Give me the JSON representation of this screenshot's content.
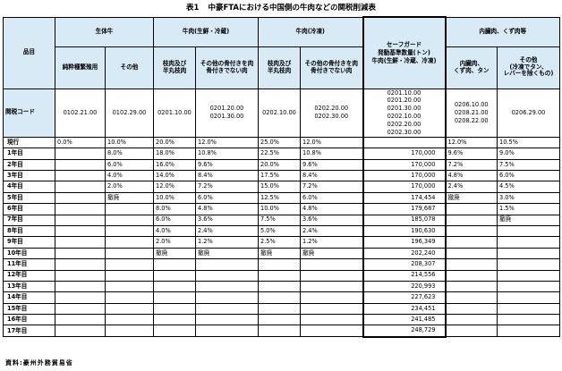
{
  "title": {
    "number": "表1",
    "text": "中豪FTAにおける中国側の牛肉などの関税削減表"
  },
  "headers": {
    "item": "品目",
    "whole_cattle": "生体牛",
    "beef_fresh": "牛肉(生鮮・冷蔵)",
    "beef_frozen": "牛肉(冷凍)",
    "safeguard": [
      "セーフガード",
      "発動基準数量(トン)",
      "牛肉(生鮮・冷蔵、冷凍)"
    ],
    "offal": "内臓肉、くず肉等",
    "sub": {
      "breeding": "純粋種繁殖用",
      "other_cattle": "その他",
      "carcass_fresh": [
        "枝肉及び",
        "半丸枝肉"
      ],
      "other_fresh": [
        "その他の骨付きを肉",
        "骨付きでない肉"
      ],
      "carcass_frozen": [
        "枝肉及び",
        "半丸枝肉"
      ],
      "other_frozen": [
        "その他の骨付きを肉",
        "骨付きでない肉"
      ],
      "offal_a": [
        "内臓肉、",
        "くず肉、タン"
      ],
      "offal_b": [
        "その他",
        "(冷凍でタン、",
        "レバーを除くもの)"
      ]
    }
  },
  "tariff_codes": {
    "label": "関税コード",
    "cells": [
      [
        "0102.21.00"
      ],
      [
        "0102.29.00"
      ],
      [
        "0201.10.00"
      ],
      [
        "0201.20.00",
        "0201.30.00"
      ],
      [
        "0202.10.00"
      ],
      [
        "0202.20.00",
        "0202.30.00"
      ],
      [
        "0201.10.00",
        "0201.20.00",
        "0201.30.00",
        "0202.10.00",
        "0202.20.00",
        "0202.30.00"
      ],
      [
        "0206.10.00",
        "0208.21.00",
        "0208.22.00"
      ],
      [
        "0206.29.00"
      ]
    ]
  },
  "rows": [
    {
      "label": "現行",
      "cells": [
        "0.0%",
        "10.0%",
        "20.0%",
        "12.0%",
        "25.0%",
        "12.0%",
        "",
        "12.0%",
        "10.5%"
      ]
    },
    {
      "label": "1年目",
      "cells": [
        "",
        "8.0%",
        "18.0%",
        "10.8%",
        "22.5%",
        "10.8%",
        "170,000",
        "9.6%",
        "9.0%"
      ]
    },
    {
      "label": "2年目",
      "cells": [
        "",
        "6.0%",
        "16.0%",
        "9.6%",
        "20.0%",
        "9.6%",
        "170,000",
        "7.2%",
        "7.5%"
      ]
    },
    {
      "label": "3年目",
      "cells": [
        "",
        "4.0%",
        "14.0%",
        "8.4%",
        "17.5%",
        "8.4%",
        "170,000",
        "4.8%",
        "6.0%"
      ]
    },
    {
      "label": "4年目",
      "cells": [
        "",
        "2.0%",
        "12.0%",
        "7.2%",
        "15.0%",
        "7.2%",
        "170,000",
        "2.4%",
        "4.5%"
      ]
    },
    {
      "label": "5年目",
      "cells": [
        "",
        "撤廃",
        "10.0%",
        "6.0%",
        "12.5%",
        "6.0%",
        "174,454",
        "撤廃",
        "3.0%"
      ]
    },
    {
      "label": "6年目",
      "cells": [
        "",
        "",
        "8.0%",
        "4.8%",
        "10.0%",
        "4.8%",
        "179,687",
        "",
        "1.5%"
      ]
    },
    {
      "label": "7年目",
      "cells": [
        "",
        "",
        "6.0%",
        "3.6%",
        "7.5%",
        "3.6%",
        "185,078",
        "",
        "撤廃"
      ]
    },
    {
      "label": "8年目",
      "cells": [
        "",
        "",
        "4.0%",
        "2.4%",
        "5.0%",
        "2.4%",
        "190,630",
        "",
        ""
      ]
    },
    {
      "label": "9年目",
      "cells": [
        "",
        "",
        "2.0%",
        "1.2%",
        "2.5%",
        "1.2%",
        "196,349",
        "",
        ""
      ]
    },
    {
      "label": "10年目",
      "cells": [
        "",
        "",
        "撤廃",
        "撤廃",
        "撤廃",
        "撤廃",
        "202,240",
        "",
        ""
      ]
    },
    {
      "label": "11年目",
      "cells": [
        "",
        "",
        "",
        "",
        "",
        "",
        "208,307",
        "",
        ""
      ]
    },
    {
      "label": "12年目",
      "cells": [
        "",
        "",
        "",
        "",
        "",
        "",
        "214,556",
        "",
        ""
      ]
    },
    {
      "label": "13年目",
      "cells": [
        "",
        "",
        "",
        "",
        "",
        "",
        "220,993",
        "",
        ""
      ]
    },
    {
      "label": "14年目",
      "cells": [
        "",
        "",
        "",
        "",
        "",
        "",
        "227,623",
        "",
        ""
      ]
    },
    {
      "label": "15年目",
      "cells": [
        "",
        "",
        "",
        "",
        "",
        "",
        "234,451",
        "",
        ""
      ]
    },
    {
      "label": "16年目",
      "cells": [
        "",
        "",
        "",
        "",
        "",
        "",
        "241,485",
        "",
        ""
      ]
    },
    {
      "label": "17年目",
      "cells": [
        "",
        "",
        "",
        "",
        "",
        "",
        "248,729",
        "",
        ""
      ]
    }
  ],
  "source": "資料:豪州外務貿易省",
  "colors": {
    "header_bg": "#d9eaf7",
    "border": "#000000"
  }
}
